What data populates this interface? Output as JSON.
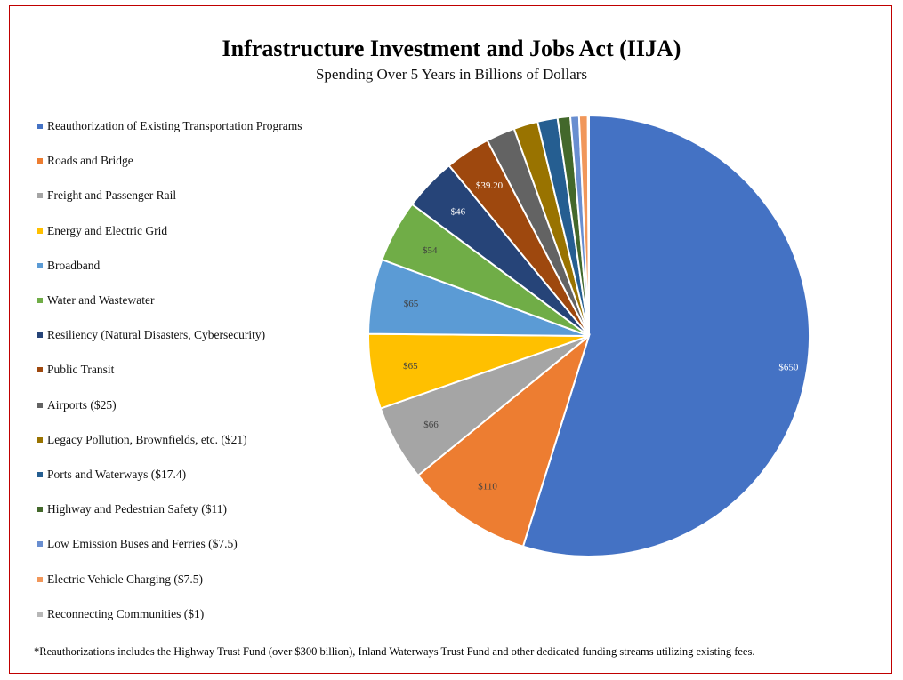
{
  "chart_data": {
    "type": "pie",
    "title": "Infrastructure Investment and Jobs Act (IIJA)",
    "subtitle": "Spending Over 5 Years in Billions of Dollars",
    "legend_placement": "left",
    "slices": [
      {
        "label": "Reauthorization of Existing Transportation Programs",
        "value": 650,
        "data_label": "$650",
        "color": "#4472C4",
        "label_color": "#ffffff"
      },
      {
        "label": "Roads and Bridge",
        "value": 110,
        "data_label": "$110",
        "color": "#ED7D31",
        "label_color": "#404040"
      },
      {
        "label": "Freight and Passenger Rail",
        "value": 66,
        "data_label": "$66",
        "color": "#A5A5A5",
        "label_color": "#404040"
      },
      {
        "label": "Energy and Electric Grid",
        "value": 65,
        "data_label": "$65",
        "color": "#FFC000",
        "label_color": "#404040"
      },
      {
        "label": "Broadband",
        "value": 65,
        "data_label": "$65",
        "color": "#5B9BD5",
        "label_color": "#404040"
      },
      {
        "label": "Water and Wastewater",
        "value": 54,
        "data_label": "$54",
        "color": "#70AD47",
        "label_color": "#404040"
      },
      {
        "label": "Resiliency (Natural Disasters, Cybersecurity)",
        "value": 46,
        "data_label": "$46",
        "color": "#264478",
        "label_color": "#ffffff"
      },
      {
        "label": "Public Transit",
        "value": 39.2,
        "data_label": "$39.20",
        "color": "#9E480E",
        "label_color": "#ffffff"
      },
      {
        "label": "Airports ($25)",
        "value": 25,
        "data_label": "",
        "color": "#636363",
        "label_color": "#ffffff"
      },
      {
        "label": "Legacy Pollution, Brownfields, etc. ($21)",
        "value": 21,
        "data_label": "",
        "color": "#997300",
        "label_color": "#ffffff"
      },
      {
        "label": "Ports and Waterways ($17.4)",
        "value": 17.4,
        "data_label": "",
        "color": "#255E91",
        "label_color": "#ffffff"
      },
      {
        "label": "Highway and Pedestrian Safety ($11)",
        "value": 11,
        "data_label": "",
        "color": "#43682B",
        "label_color": "#ffffff"
      },
      {
        "label": "Low Emission Buses and Ferries ($7.5)",
        "value": 7.5,
        "data_label": "",
        "color": "#698ED0",
        "label_color": "#ffffff"
      },
      {
        "label": "Electric Vehicle Charging ($7.5)",
        "value": 7.5,
        "data_label": "",
        "color": "#F1975A",
        "label_color": "#ffffff"
      },
      {
        "label": "Reconnecting Communities ($1)",
        "value": 1,
        "data_label": "",
        "color": "#B7B7B7",
        "label_color": "#ffffff"
      }
    ]
  },
  "footnote": "*Reauthorizations includes the Highway Trust Fund (over $300 billion), Inland Waterways Trust Fund and other dedicated funding streams utilizing existing fees."
}
